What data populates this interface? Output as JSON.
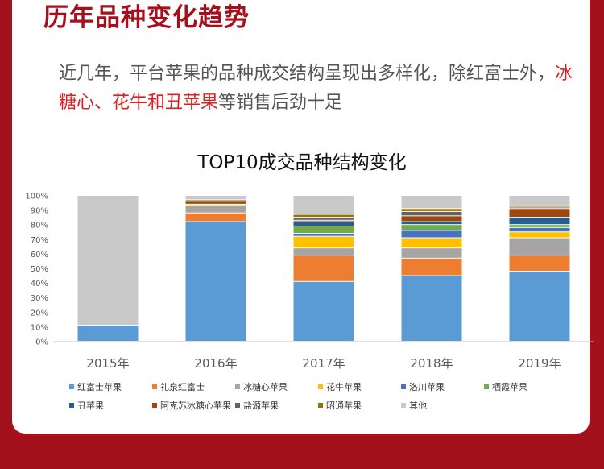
{
  "header": {
    "title": "历年品种变化趋势",
    "intro_part1": "近几年，平台苹果的品种成交结构呈现出多样化，除红富士外，",
    "intro_highlight": "冰糖心、花牛和丑苹果",
    "intro_part2": "等销售后劲十足"
  },
  "chart_data": {
    "type": "bar",
    "stacked": true,
    "title": "TOP10成交品种结构变化",
    "xlabel": "",
    "ylabel": "",
    "ylim": [
      0,
      100
    ],
    "y_ticks": [
      "0%",
      "10%",
      "20%",
      "30%",
      "40%",
      "50%",
      "60%",
      "70%",
      "80%",
      "90%",
      "100%"
    ],
    "grid": false,
    "legend_position": "bottom",
    "categories": [
      "2015年",
      "2016年",
      "2017年",
      "2018年",
      "2019年"
    ],
    "series": [
      {
        "name": "红富士苹果",
        "color": "#5b9bd5",
        "values": [
          11,
          82,
          41,
          45,
          48
        ]
      },
      {
        "name": "礼泉红富士",
        "color": "#ed7d31",
        "values": [
          0,
          6,
          18,
          12,
          11
        ]
      },
      {
        "name": "冰糖心苹果",
        "color": "#a5a5a5",
        "values": [
          0,
          5,
          5,
          7,
          12
        ]
      },
      {
        "name": "花牛苹果",
        "color": "#ffc000",
        "values": [
          0,
          1,
          8,
          7,
          4
        ]
      },
      {
        "name": "洛川苹果",
        "color": "#4472c4",
        "values": [
          0,
          0,
          2,
          5,
          3
        ]
      },
      {
        "name": "栖霞苹果",
        "color": "#70ad47",
        "values": [
          0,
          0,
          5,
          4,
          2
        ]
      },
      {
        "name": "丑苹果",
        "color": "#255e91",
        "values": [
          0,
          0,
          3,
          2,
          5
        ]
      },
      {
        "name": "阿克苏冰糖心苹果",
        "color": "#9e480e",
        "values": [
          0,
          2,
          1,
          4,
          6
        ]
      },
      {
        "name": "盐源苹果",
        "color": "#636363",
        "values": [
          0,
          0,
          2,
          3,
          1
        ]
      },
      {
        "name": "昭通苹果",
        "color": "#997300",
        "values": [
          0,
          1,
          2,
          2,
          1
        ]
      },
      {
        "name": "其他",
        "color": "#c9c9c9",
        "values": [
          89,
          3,
          13,
          9,
          7
        ]
      }
    ]
  }
}
